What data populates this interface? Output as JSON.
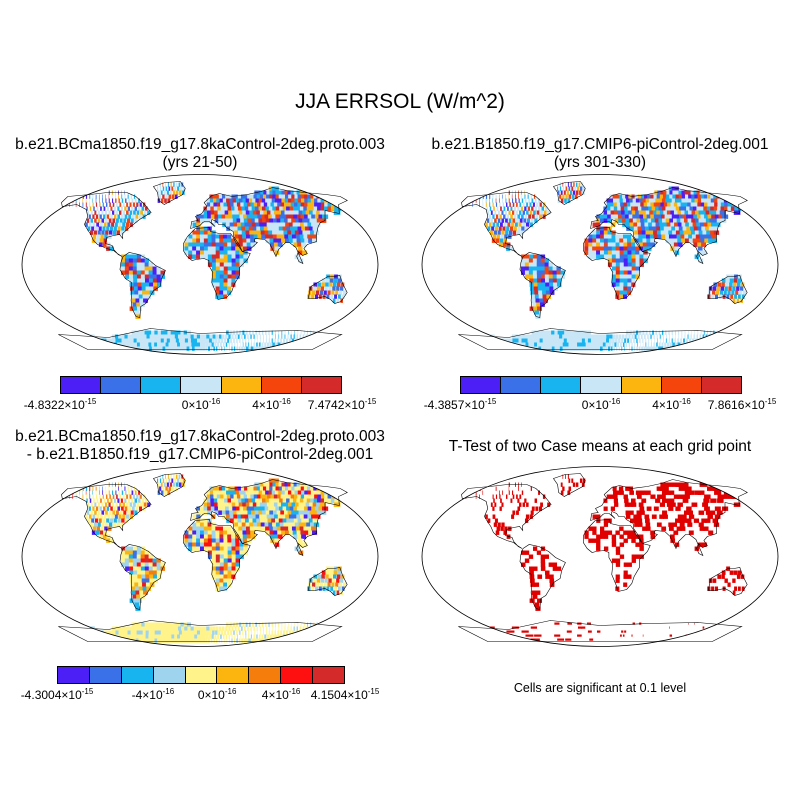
{
  "title": "JJA ERRSOL (W/m^2)",
  "panels": [
    {
      "title_line1": "b.e21.BCma1850.f19_g17.8kaControl-2deg.proto.003",
      "title_line2": "(yrs 21-50)",
      "colors": [
        "#4b1ff5",
        "#3a70e8",
        "#18b4f0",
        "#c8e6f6",
        "#fbb50e",
        "#f5440c",
        "#d42a2a"
      ],
      "ticks": [
        {
          "base": "-4.8322×10",
          "exp": "-15"
        },
        {
          "base": "0×10",
          "exp": "-16"
        },
        {
          "base": "4×10",
          "exp": "-16"
        },
        {
          "base": "7.4742×10",
          "exp": "-15"
        }
      ]
    },
    {
      "title_line1": "b.e21.B1850.f19_g17.CMIP6-piControl-2deg.001",
      "title_line2": "(yrs 301-330)",
      "colors": [
        "#4b1ff5",
        "#3a70e8",
        "#18b4f0",
        "#c8e6f6",
        "#fbb50e",
        "#f5440c",
        "#d42a2a"
      ],
      "ticks": [
        {
          "base": "-4.3857×10",
          "exp": "-15"
        },
        {
          "base": "0×10",
          "exp": "-16"
        },
        {
          "base": "4×10",
          "exp": "-16"
        },
        {
          "base": "7.8616×10",
          "exp": "-15"
        }
      ]
    },
    {
      "title_line1": "b.e21.BCma1850.f19_g17.8kaControl-2deg.proto.003",
      "title_line2": "- b.e21.B1850.f19_g17.CMIP6-piControl-2deg.001",
      "colors": [
        "#4b1ff5",
        "#3a70e8",
        "#18b4f0",
        "#9fd4ef",
        "#fff38a",
        "#fbb50e",
        "#f57d0c",
        "#ff1010",
        "#d42a2a"
      ],
      "ticks": [
        {
          "base": "-4.3004×10",
          "exp": "-15"
        },
        {
          "base": "-4×10",
          "exp": "-16"
        },
        {
          "base": "0×10",
          "exp": "-16"
        },
        {
          "base": "4×10",
          "exp": "-16"
        },
        {
          "base": "4.1504×10",
          "exp": "-15"
        }
      ]
    },
    {
      "title_line1": "T-Test of two Case means at each grid point",
      "note": "Cells are significant at 0.1 level",
      "significant_color": "#e00000"
    }
  ]
}
